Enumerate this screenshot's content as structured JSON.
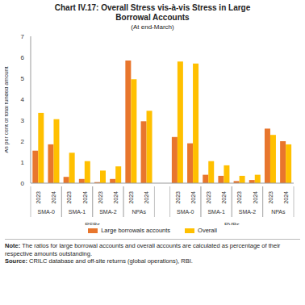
{
  "chart_data": {
    "type": "bar",
    "title": "Chart IV.17: Overall Stress vis-à-vis Stress in Large Borrowal Accounts",
    "subtitle": "(At end-March)",
    "y_label": "As per cent of total funded amount",
    "categories": [
      "2023",
      "2024",
      "2023",
      "2024",
      "2023",
      "2024",
      "2023",
      "2024",
      null,
      "2023",
      "2024",
      "2023",
      "2024",
      "2023",
      "2024",
      "2023",
      "2024"
    ],
    "group_labels": [
      {
        "label": "SMA-0",
        "span": 2
      },
      {
        "label": "SMA-1",
        "span": 2
      },
      {
        "label": "SMA-2",
        "span": 2
      },
      {
        "label": "NPAs",
        "span": 2
      },
      {
        "label": null,
        "span": 1
      },
      {
        "label": "SMA-0",
        "span": 2
      },
      {
        "label": "SMA-1",
        "span": 2
      },
      {
        "label": "SMA-2",
        "span": 2
      },
      {
        "label": "NPAs",
        "span": 2
      }
    ],
    "bank_labels": [
      {
        "label": "PSBs",
        "span": 8
      },
      {
        "label": null,
        "span": 1
      },
      {
        "label": "PVBs",
        "span": 8
      }
    ],
    "series": [
      {
        "name": "Large borrowals accounts",
        "color": "#E8762D",
        "values": [
          1.55,
          1.85,
          0.3,
          0.2,
          0.05,
          0.2,
          5.85,
          2.95,
          null,
          2.2,
          1.9,
          0.4,
          0.35,
          0.1,
          0.15,
          2.6,
          2.0
        ]
      },
      {
        "name": "Overall",
        "color": "#FFC000",
        "values": [
          3.35,
          3.05,
          1.45,
          1.05,
          0.6,
          0.8,
          4.95,
          3.45,
          null,
          5.8,
          5.7,
          1.05,
          0.85,
          0.35,
          0.4,
          2.3,
          1.85
        ]
      }
    ],
    "ylim": [
      0,
      7
    ],
    "yticks": [
      0,
      1,
      2,
      3,
      4,
      5,
      6,
      7
    ],
    "grid": false,
    "data_labels": false,
    "notes": [
      {
        "label": "Note:",
        "text": "The ratios for large borrowal accounts and overall accounts are calculated as percentage of their respective amounts outstanding."
      },
      {
        "label": "Source:",
        "text": "CRILC database and off-site returns (global operations), RBI."
      }
    ]
  }
}
